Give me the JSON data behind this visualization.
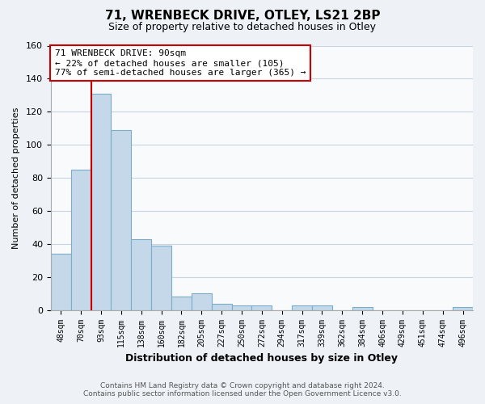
{
  "title": "71, WRENBECK DRIVE, OTLEY, LS21 2BP",
  "subtitle": "Size of property relative to detached houses in Otley",
  "xlabel": "Distribution of detached houses by size in Otley",
  "ylabel": "Number of detached properties",
  "bar_labels": [
    "48sqm",
    "70sqm",
    "93sqm",
    "115sqm",
    "138sqm",
    "160sqm",
    "182sqm",
    "205sqm",
    "227sqm",
    "250sqm",
    "272sqm",
    "294sqm",
    "317sqm",
    "339sqm",
    "362sqm",
    "384sqm",
    "406sqm",
    "429sqm",
    "451sqm",
    "474sqm",
    "496sqm"
  ],
  "bar_values": [
    34,
    85,
    131,
    109,
    43,
    39,
    8,
    10,
    4,
    3,
    3,
    0,
    3,
    3,
    0,
    2,
    0,
    0,
    0,
    0,
    2
  ],
  "bar_color": "#c5d8ea",
  "bar_edge_color": "#7aaec8",
  "vline_x": 1.5,
  "vline_color": "#cc0000",
  "annotation_title": "71 WRENBECK DRIVE: 90sqm",
  "annotation_line1": "← 22% of detached houses are smaller (105)",
  "annotation_line2": "77% of semi-detached houses are larger (365) →",
  "annotation_box_color": "#ffffff",
  "annotation_box_edge_color": "#cc0000",
  "ylim": [
    0,
    160
  ],
  "yticks": [
    0,
    20,
    40,
    60,
    80,
    100,
    120,
    140,
    160
  ],
  "footer_line1": "Contains HM Land Registry data © Crown copyright and database right 2024.",
  "footer_line2": "Contains public sector information licensed under the Open Government Licence v3.0.",
  "background_color": "#eef2f7",
  "plot_bg_color": "#f8fafc",
  "grid_color": "#c8d4e0"
}
